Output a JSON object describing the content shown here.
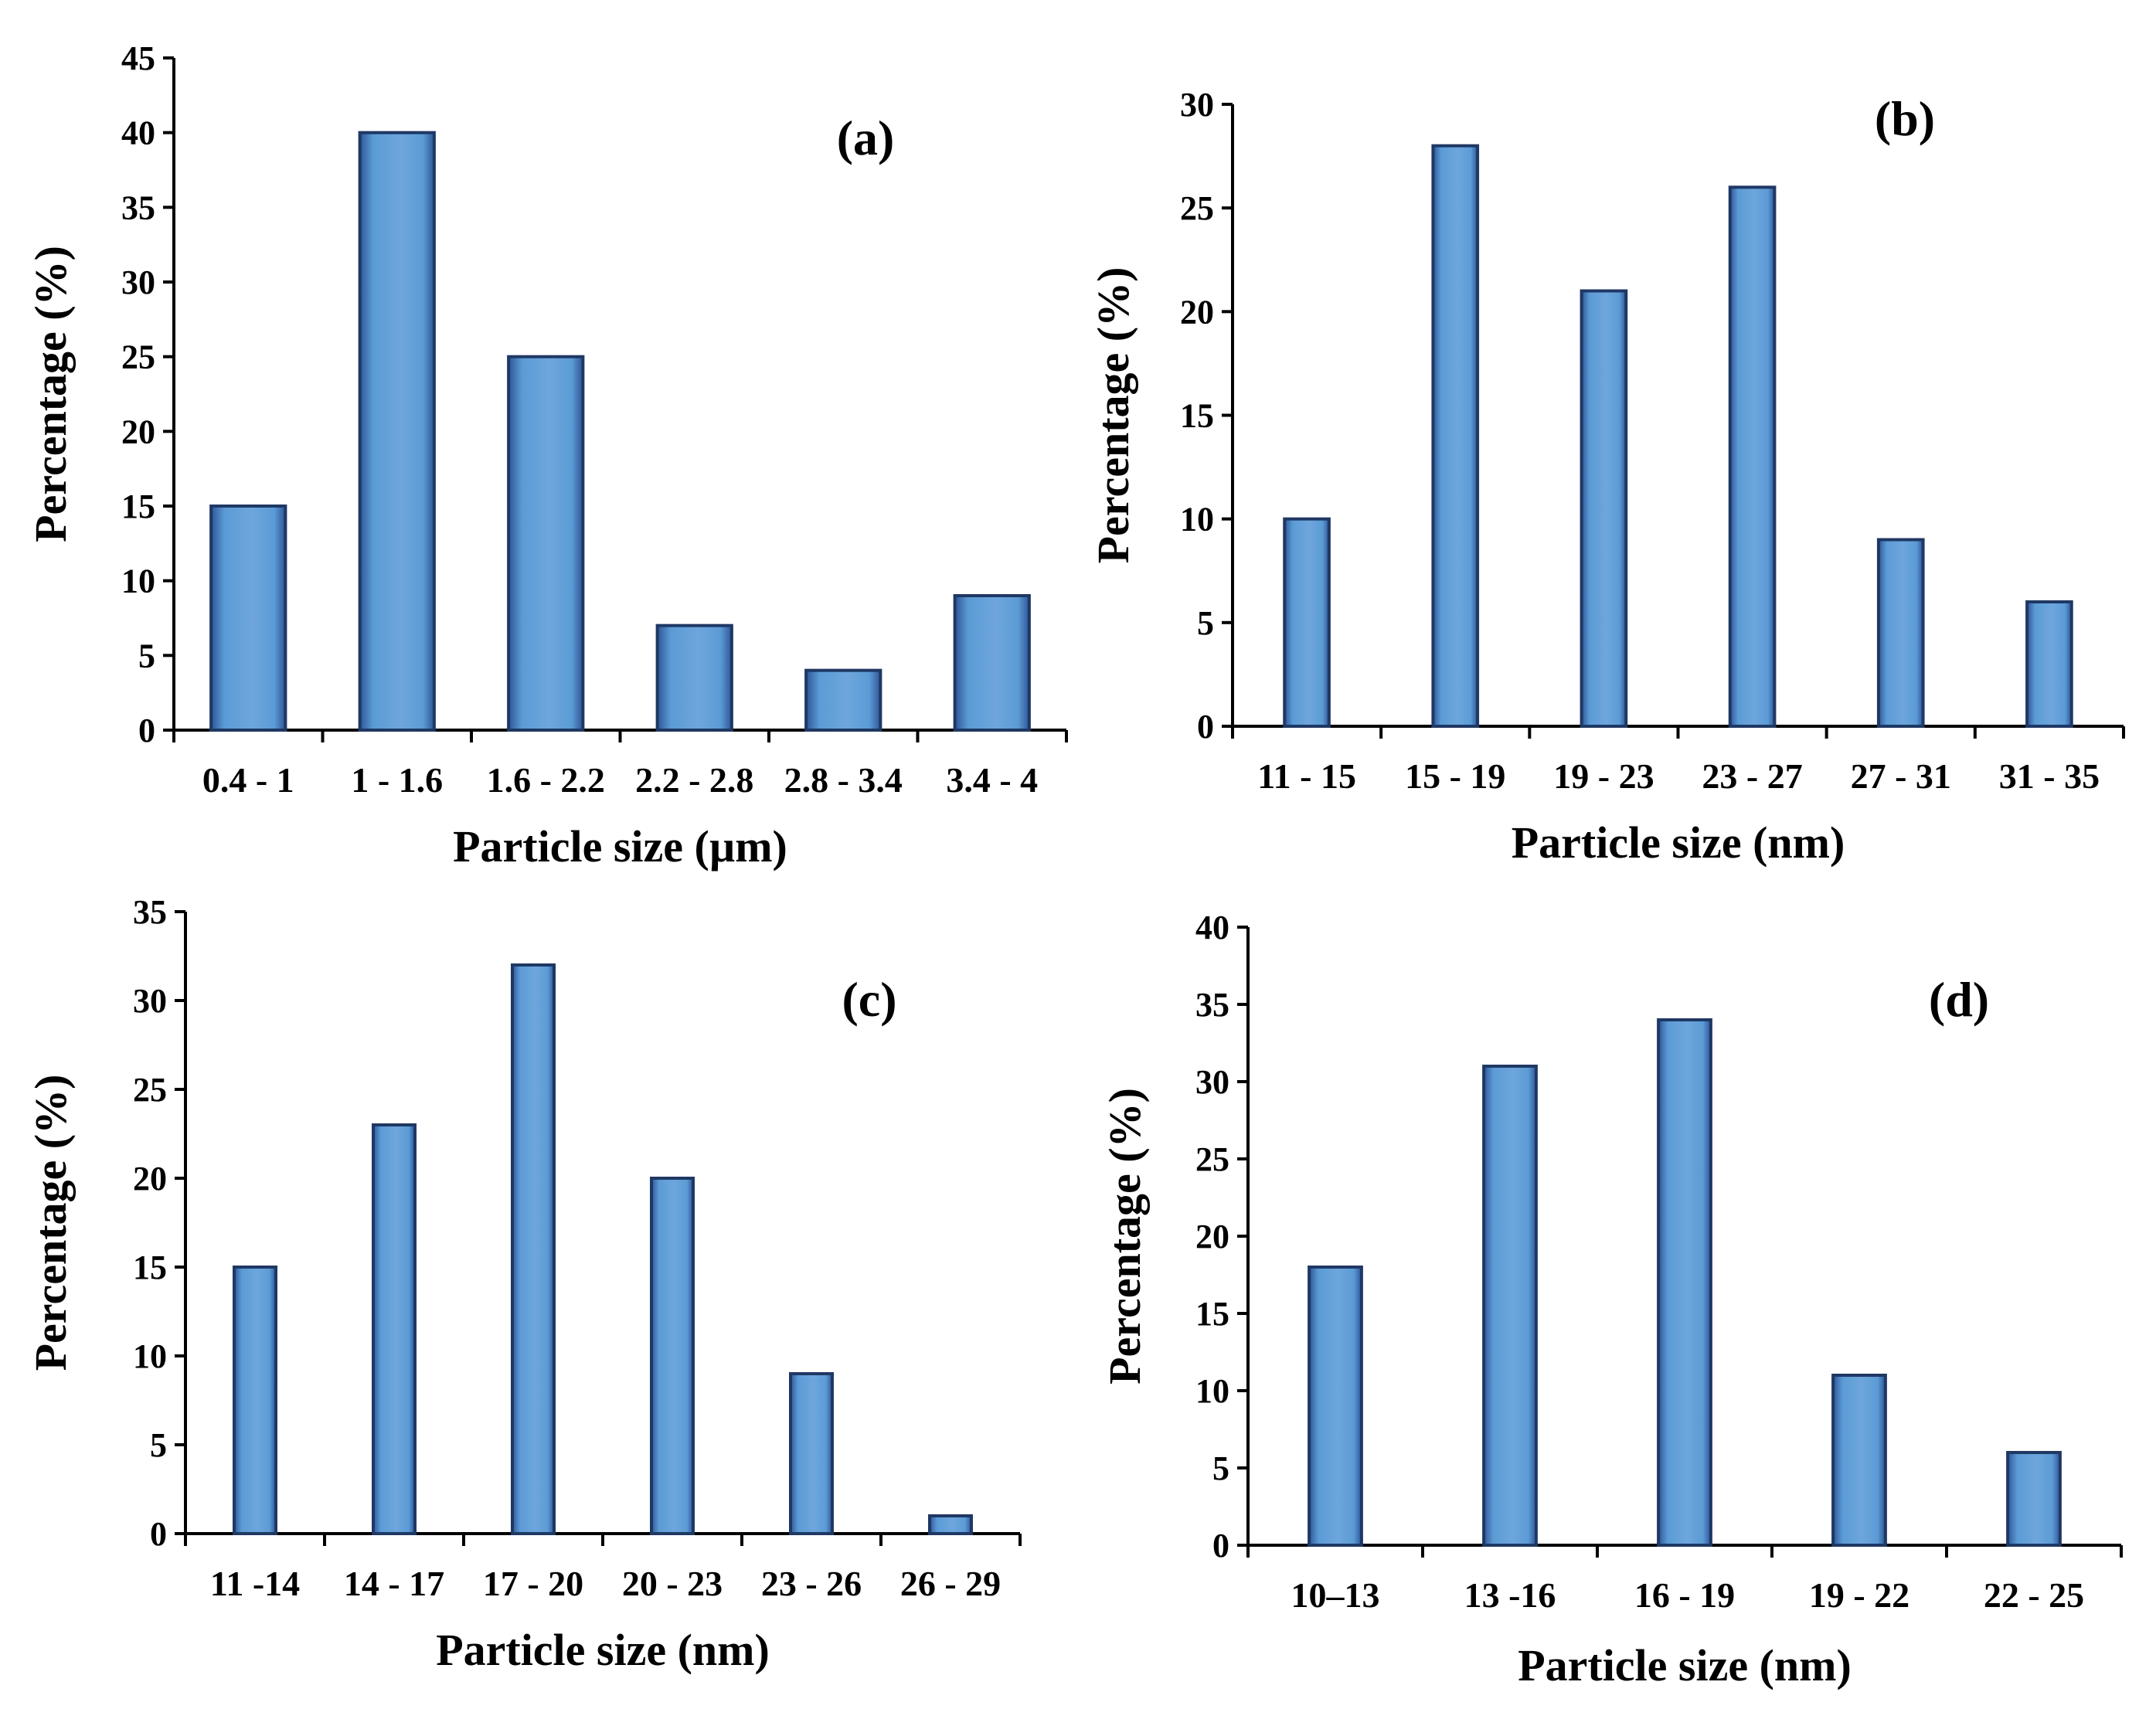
{
  "figure": {
    "bar_color": "#5b9bd5",
    "bar_edge_color": "#1f3864"
  },
  "chart_data": [
    {
      "type": "bar",
      "panel_label": "(a)",
      "categories": [
        "0.4 - 1",
        "1 - 1.6",
        "1.6 - 2.2",
        "2.2 - 2.8",
        "2.8 - 3.4",
        "3.4 - 4"
      ],
      "values": [
        15,
        40,
        25,
        7,
        4,
        9
      ],
      "xlabel": "Particle size (µm)",
      "ylabel": "Percentage (%)",
      "ylim": [
        0,
        45
      ],
      "yticks": [
        0,
        5,
        10,
        15,
        20,
        25,
        30,
        35,
        40,
        45
      ],
      "grid": false
    },
    {
      "type": "bar",
      "panel_label": "(b)",
      "categories": [
        "11 - 15",
        "15 - 19",
        "19 - 23",
        "23 - 27",
        "27 - 31",
        "31 - 35"
      ],
      "values": [
        10,
        28,
        21,
        26,
        9,
        6
      ],
      "xlabel": "Particle size (nm)",
      "ylabel": "Percentage (%)",
      "ylim": [
        0,
        30
      ],
      "yticks": [
        0,
        5,
        10,
        15,
        20,
        25,
        30
      ],
      "grid": false
    },
    {
      "type": "bar",
      "panel_label": "(c)",
      "categories": [
        "11 -14",
        "14 - 17",
        "17 - 20",
        "20 - 23",
        "23 - 26",
        "26 - 29"
      ],
      "values": [
        15,
        23,
        32,
        20,
        9,
        1
      ],
      "xlabel": "Particle size (nm)",
      "ylabel": "Percentage (%)",
      "ylim": [
        0,
        35
      ],
      "yticks": [
        0,
        5,
        10,
        15,
        20,
        25,
        30,
        35
      ],
      "grid": false
    },
    {
      "type": "bar",
      "panel_label": "(d)",
      "categories": [
        "10–13",
        "13 -16",
        "16 - 19",
        "19 - 22",
        "22 - 25"
      ],
      "values": [
        18,
        31,
        34,
        11,
        6
      ],
      "xlabel": "Particle size (nm)",
      "ylabel": "Percentage (%)",
      "ylim": [
        0,
        40
      ],
      "yticks": [
        0,
        5,
        10,
        15,
        20,
        25,
        30,
        35,
        40
      ],
      "grid": false
    }
  ]
}
